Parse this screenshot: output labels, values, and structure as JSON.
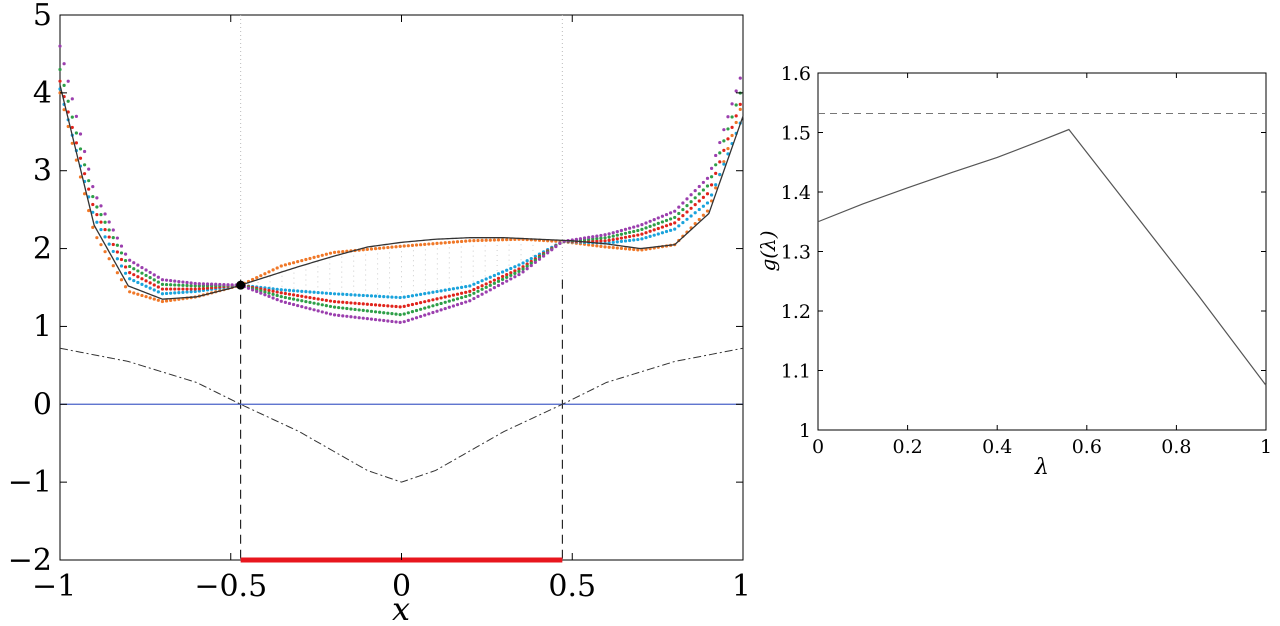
{
  "chart_data": [
    {
      "type": "line",
      "xlabel": "x",
      "ylabel": "",
      "xlim": [
        -1,
        1
      ],
      "ylim": [
        -2,
        5
      ],
      "x_ticks": [
        -1,
        -0.5,
        0,
        0.5,
        1
      ],
      "y_ticks": [
        -2,
        -1,
        0,
        1,
        2,
        3,
        4,
        5
      ],
      "x_tick_labels": [
        "−1",
        "−0.5",
        "0",
        "0.5",
        "1"
      ],
      "y_tick_labels": [
        "−2",
        "−1",
        "0",
        "1",
        "2",
        "3",
        "4",
        "5"
      ],
      "grid": false,
      "vertical_dashed_lines_x": [
        -0.471,
        0.471
      ],
      "highlighted_interval": [
        -0.471,
        0.471
      ],
      "highlighted_interval_color": "#e8161e",
      "marked_point": [
        -0.471,
        1.53
      ],
      "colors": {
        "solid_curve": "#333333",
        "zero_line": "#4a63c8",
        "cyan": "#1aa3dc",
        "red": "#e0241c",
        "green": "#2e9f48",
        "purple": "#9b3fae",
        "orange": "#f07828"
      },
      "series": [
        {
          "style": "solid",
          "x": [
            -1,
            -0.9,
            -0.8,
            -0.7,
            -0.6,
            -0.5,
            -0.4,
            -0.3,
            -0.2,
            -0.1,
            0,
            0.1,
            0.2,
            0.3,
            0.4,
            0.5,
            0.6,
            0.7,
            0.8,
            0.9,
            1
          ],
          "y": [
            4.1,
            2.3,
            1.52,
            1.35,
            1.38,
            1.49,
            1.63,
            1.77,
            1.9,
            2.02,
            2.08,
            2.12,
            2.14,
            2.14,
            2.12,
            2.1,
            2.06,
            2.0,
            2.05,
            2.45,
            3.7
          ]
        },
        {
          "style": "dash-dot",
          "x": [
            -1,
            -0.8,
            -0.6,
            -0.471,
            -0.3,
            -0.2,
            -0.1,
            0,
            0.1,
            0.2,
            0.3,
            0.471,
            0.6,
            0.8,
            1
          ],
          "y": [
            0.72,
            0.55,
            0.28,
            0.0,
            -0.35,
            -0.6,
            -0.85,
            -1.0,
            -0.85,
            -0.6,
            -0.35,
            0.0,
            0.28,
            0.55,
            0.72
          ]
        },
        {
          "style": "solid",
          "x": [
            -1,
            1
          ],
          "y": [
            0,
            0
          ]
        },
        {
          "style": "dotted",
          "x": [
            -1,
            -0.9,
            -0.8,
            -0.7,
            -0.6,
            -0.471,
            -0.35,
            -0.2,
            0,
            0.2,
            0.35,
            0.471,
            0.6,
            0.7,
            0.8,
            0.9,
            1
          ],
          "y": [
            4.0,
            2.2,
            1.45,
            1.32,
            1.38,
            1.53,
            1.78,
            1.95,
            2.03,
            2.1,
            2.12,
            2.09,
            2.02,
            1.98,
            2.05,
            2.5,
            3.9
          ]
        },
        {
          "style": "dotted",
          "x": [
            -1,
            -0.9,
            -0.8,
            -0.7,
            -0.6,
            -0.471,
            -0.35,
            -0.2,
            0,
            0.2,
            0.35,
            0.471,
            0.6,
            0.7,
            0.8,
            0.9,
            1
          ],
          "y": [
            4.05,
            2.4,
            1.62,
            1.42,
            1.45,
            1.53,
            1.47,
            1.42,
            1.37,
            1.52,
            1.8,
            2.09,
            2.07,
            2.12,
            2.25,
            2.6,
            3.7
          ]
        },
        {
          "style": "dotted",
          "x": [
            -1,
            -0.9,
            -0.8,
            -0.7,
            -0.6,
            -0.471,
            -0.35,
            -0.2,
            0,
            0.2,
            0.35,
            0.471,
            0.6,
            0.7,
            0.8,
            0.9,
            1
          ],
          "y": [
            4.15,
            2.5,
            1.7,
            1.48,
            1.48,
            1.53,
            1.43,
            1.32,
            1.25,
            1.45,
            1.75,
            2.09,
            2.1,
            2.18,
            2.33,
            2.72,
            3.95
          ]
        },
        {
          "style": "dotted",
          "x": [
            -1,
            -0.9,
            -0.8,
            -0.7,
            -0.6,
            -0.471,
            -0.35,
            -0.2,
            0,
            0.2,
            0.35,
            0.471,
            0.6,
            0.7,
            0.8,
            0.9,
            1
          ],
          "y": [
            4.3,
            2.6,
            1.78,
            1.54,
            1.52,
            1.53,
            1.38,
            1.25,
            1.15,
            1.4,
            1.72,
            2.09,
            2.14,
            2.24,
            2.4,
            2.82,
            4.1
          ]
        },
        {
          "style": "dotted",
          "x": [
            -1,
            -0.9,
            -0.8,
            -0.7,
            -0.6,
            -0.471,
            -0.35,
            -0.2,
            0,
            0.2,
            0.35,
            0.471,
            0.6,
            0.7,
            0.8,
            0.9,
            1
          ],
          "y": [
            4.6,
            2.72,
            1.86,
            1.6,
            1.55,
            1.53,
            1.32,
            1.15,
            1.05,
            1.33,
            1.68,
            2.09,
            2.18,
            2.3,
            2.48,
            2.92,
            4.3
          ]
        }
      ]
    },
    {
      "type": "line",
      "xlabel": "λ",
      "ylabel": "g(λ)",
      "xlim": [
        0,
        1
      ],
      "ylim": [
        1,
        1.6
      ],
      "x_ticks": [
        0,
        0.2,
        0.4,
        0.6,
        0.8,
        1
      ],
      "y_ticks": [
        1,
        1.1,
        1.2,
        1.3,
        1.4,
        1.5,
        1.6
      ],
      "x_tick_labels": [
        "0",
        "0.2",
        "0.4",
        "0.6",
        "0.8",
        "1"
      ],
      "y_tick_labels": [
        "1",
        "1.1",
        "1.2",
        "1.3",
        "1.4",
        "1.5",
        "1.6"
      ],
      "grid": false,
      "colors": {
        "line": "#555555",
        "dashed": "#777777"
      },
      "series": [
        {
          "style": "solid",
          "x": [
            0,
            0.1,
            0.2,
            0.3,
            0.4,
            0.5,
            0.56,
            0.7,
            0.85,
            1
          ],
          "y": [
            1.35,
            1.38,
            1.407,
            1.433,
            1.458,
            1.487,
            1.505,
            1.37,
            1.225,
            1.075
          ]
        },
        {
          "style": "dashed",
          "x": [
            0,
            1
          ],
          "y": [
            1.532,
            1.532
          ]
        }
      ]
    }
  ]
}
